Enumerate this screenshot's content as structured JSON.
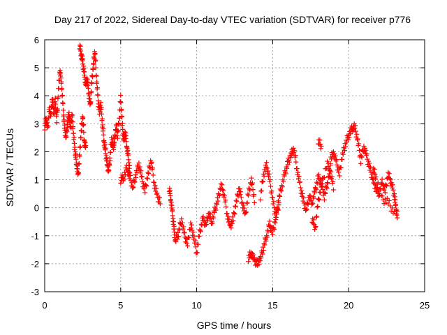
{
  "chart_data": {
    "type": "scatter",
    "title": "Day 217 of 2022, Sidereal Day-to-day VTEC variation (SDTVAR) for receiver p776",
    "xlabel": "GPS time / hours",
    "ylabel": "SDTVAR / TECUs",
    "xlim": [
      0,
      25
    ],
    "ylim": [
      -3,
      6
    ],
    "xticks": [
      "0",
      "5",
      "10",
      "15",
      "20",
      "25"
    ],
    "yticks": [
      "-3",
      "-2",
      "-1",
      "0",
      "1",
      "2",
      "3",
      "4",
      "5",
      "6"
    ],
    "grid": true,
    "marker": "+",
    "series": [
      {
        "name": "SDTVAR",
        "color": "#ff0000",
        "segments": [
          [
            [
              0.0,
              2.9
            ],
            [
              0.1,
              3.2
            ],
            [
              0.2,
              2.8
            ],
            [
              0.3,
              3.5
            ],
            [
              0.4,
              3.3
            ],
            [
              0.5,
              3.9
            ],
            [
              0.6,
              3.4
            ],
            [
              0.7,
              3.8
            ],
            [
              0.8,
              3.1
            ],
            [
              0.9,
              4.2
            ],
            [
              1.0,
              4.9
            ],
            [
              1.1,
              4.5
            ],
            [
              1.2,
              3.6
            ],
            [
              1.3,
              2.9
            ],
            [
              1.4,
              2.5
            ],
            [
              1.5,
              3.0
            ],
            [
              1.6,
              3.4
            ],
            [
              1.7,
              2.8
            ],
            [
              1.8,
              3.3
            ],
            [
              1.9,
              2.6
            ],
            [
              2.0,
              2.0
            ],
            [
              2.1,
              1.6
            ],
            [
              2.2,
              1.1
            ],
            [
              2.3,
              1.9
            ],
            [
              2.4,
              2.7
            ],
            [
              2.5,
              3.3
            ],
            [
              2.6,
              2.4
            ],
            [
              2.7,
              2.1
            ]
          ],
          [
            [
              2.3,
              5.8
            ],
            [
              2.4,
              5.5
            ],
            [
              2.5,
              5.2
            ],
            [
              2.6,
              4.8
            ],
            [
              2.7,
              4.4
            ],
            [
              2.8,
              4.6
            ],
            [
              2.9,
              4.1
            ],
            [
              3.0,
              3.6
            ],
            [
              3.1,
              4.5
            ],
            [
              3.2,
              5.1
            ],
            [
              3.3,
              5.6
            ],
            [
              3.4,
              4.7
            ],
            [
              3.5,
              3.9
            ],
            [
              3.6,
              3.4
            ],
            [
              3.7,
              3.7
            ],
            [
              3.8,
              3.0
            ],
            [
              3.9,
              2.4
            ],
            [
              4.0,
              2.0
            ],
            [
              4.1,
              1.6
            ],
            [
              4.2,
              1.3
            ],
            [
              4.3,
              1.8
            ],
            [
              4.4,
              2.5
            ],
            [
              4.5,
              2.1
            ],
            [
              4.6,
              2.4
            ],
            [
              4.7,
              2.9
            ],
            [
              4.8,
              2.6
            ],
            [
              4.9,
              3.2
            ],
            [
              5.0,
              3.9
            ],
            [
              5.1,
              3.0
            ],
            [
              5.2,
              2.4
            ],
            [
              5.3,
              2.7
            ],
            [
              5.4,
              2.2
            ],
            [
              5.5,
              1.8
            ],
            [
              5.6,
              1.3
            ]
          ],
          [
            [
              5.0,
              1.0
            ],
            [
              5.2,
              1.1
            ],
            [
              5.4,
              1.4
            ],
            [
              5.6,
              1.1
            ],
            [
              5.8,
              0.7
            ],
            [
              6.0,
              1.2
            ],
            [
              6.2,
              1.6
            ],
            [
              6.4,
              1.0
            ],
            [
              6.6,
              0.6
            ],
            [
              6.8,
              1.2
            ],
            [
              7.0,
              1.7
            ],
            [
              7.2,
              0.9
            ],
            [
              7.4,
              0.4
            ],
            [
              7.6,
              0.2
            ]
          ],
          [
            [
              8.2,
              0.7
            ],
            [
              8.3,
              0.3
            ],
            [
              8.4,
              -0.2
            ],
            [
              8.5,
              -0.7
            ],
            [
              8.6,
              -1.2
            ],
            [
              8.8,
              -0.9
            ],
            [
              9.0,
              -0.4
            ],
            [
              9.2,
              -1.0
            ],
            [
              9.4,
              -1.3
            ],
            [
              9.6,
              -0.6
            ],
            [
              9.8,
              -1.0
            ],
            [
              10.0,
              -1.6
            ],
            [
              10.2,
              -0.9
            ],
            [
              10.4,
              -0.4
            ],
            [
              10.6,
              -0.6
            ],
            [
              10.8,
              -0.2
            ],
            [
              11.0,
              -0.5
            ],
            [
              11.2,
              -0.1
            ],
            [
              11.4,
              0.3
            ],
            [
              11.6,
              0.8
            ],
            [
              11.8,
              0.5
            ],
            [
              12.0,
              -0.2
            ],
            [
              12.2,
              -0.7
            ],
            [
              12.4,
              -0.4
            ],
            [
              12.6,
              0.2
            ],
            [
              12.8,
              0.7
            ],
            [
              13.0,
              0.2
            ],
            [
              13.2,
              -0.3
            ],
            [
              13.4,
              0.5
            ],
            [
              13.6,
              1.0
            ],
            [
              13.8,
              0.3
            ]
          ],
          [
            [
              13.4,
              -1.8
            ],
            [
              13.6,
              -1.6
            ],
            [
              13.8,
              -1.9
            ],
            [
              14.0,
              -2.0
            ],
            [
              14.2,
              -1.8
            ],
            [
              14.4,
              -1.4
            ],
            [
              14.6,
              -1.0
            ],
            [
              14.8,
              -0.6
            ],
            [
              15.0,
              -0.9
            ],
            [
              15.2,
              -0.4
            ],
            [
              15.4,
              0.3
            ],
            [
              15.6,
              0.8
            ],
            [
              15.8,
              1.2
            ],
            [
              16.0,
              1.6
            ],
            [
              16.2,
              1.9
            ],
            [
              16.4,
              2.1
            ],
            [
              16.6,
              1.4
            ],
            [
              16.8,
              0.8
            ],
            [
              17.0,
              0.3
            ],
            [
              17.2,
              -0.1
            ],
            [
              17.4,
              0.4
            ],
            [
              17.6,
              0.2
            ],
            [
              17.8,
              0.6
            ],
            [
              18.0,
              1.1
            ],
            [
              18.2,
              0.9
            ],
            [
              18.4,
              0.4
            ],
            [
              18.6,
              0.9
            ],
            [
              18.8,
              1.4
            ],
            [
              19.0,
              0.7
            ]
          ],
          [
            [
              14.2,
              0.4
            ],
            [
              14.4,
              1.2
            ],
            [
              14.6,
              1.5
            ],
            [
              14.8,
              1.0
            ],
            [
              15.0,
              0.3
            ],
            [
              15.2,
              -0.3
            ],
            [
              15.4,
              0.1
            ]
          ],
          [
            [
              17.6,
              -0.4
            ],
            [
              17.8,
              -0.7
            ],
            [
              18.0,
              0.2
            ],
            [
              18.2,
              0.8
            ],
            [
              18.6,
              1.6
            ],
            [
              18.8,
              1.2
            ]
          ],
          [
            [
              18.0,
              2.4
            ],
            [
              18.2,
              2.2
            ]
          ],
          [
            [
              18.8,
              1.7
            ],
            [
              19.0,
              2.0
            ],
            [
              19.2,
              1.6
            ],
            [
              19.4,
              1.2
            ],
            [
              19.6,
              1.9
            ],
            [
              19.8,
              2.3
            ],
            [
              20.0,
              2.6
            ],
            [
              20.2,
              2.8
            ],
            [
              20.4,
              2.9
            ],
            [
              20.6,
              2.4
            ],
            [
              20.8,
              1.7
            ],
            [
              21.0,
              2.2
            ],
            [
              21.2,
              1.8
            ],
            [
              21.4,
              1.4
            ],
            [
              21.6,
              1.0
            ],
            [
              21.8,
              0.7
            ],
            [
              22.0,
              0.5
            ],
            [
              22.2,
              0.9
            ],
            [
              22.4,
              0.6
            ],
            [
              22.6,
              1.2
            ],
            [
              22.8,
              0.9
            ],
            [
              23.0,
              0.5
            ],
            [
              23.1,
              0.0
            ],
            [
              23.2,
              -0.3
            ]
          ],
          [
            [
              21.6,
              1.4
            ],
            [
              21.8,
              1.1
            ],
            [
              22.2,
              0.3
            ],
            [
              22.6,
              0.2
            ],
            [
              23.0,
              -0.2
            ]
          ]
        ]
      }
    ]
  }
}
